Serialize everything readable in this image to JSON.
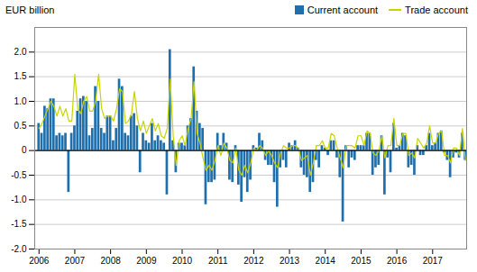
{
  "chart_data": {
    "type": "bar",
    "title": "EUR billion",
    "x": [
      2006,
      2006.083333,
      2006.166667,
      2006.25,
      2006.333333,
      2006.416667,
      2006.5,
      2006.583333,
      2006.666667,
      2006.75,
      2006.833333,
      2006.916667,
      2007,
      2007.083333,
      2007.166667,
      2007.25,
      2007.333333,
      2007.416667,
      2007.5,
      2007.583333,
      2007.666667,
      2007.75,
      2007.833333,
      2007.916667,
      2008,
      2008.083333,
      2008.166667,
      2008.25,
      2008.333333,
      2008.416667,
      2008.5,
      2008.583333,
      2008.666667,
      2008.75,
      2008.833333,
      2008.916667,
      2009,
      2009.083333,
      2009.166667,
      2009.25,
      2009.333333,
      2009.416667,
      2009.5,
      2009.583333,
      2009.666667,
      2009.75,
      2009.833333,
      2009.916667,
      2010,
      2010.083333,
      2010.166667,
      2010.25,
      2010.333333,
      2010.416667,
      2010.5,
      2010.583333,
      2010.666667,
      2010.75,
      2010.833333,
      2010.916667,
      2011,
      2011.083333,
      2011.166667,
      2011.25,
      2011.333333,
      2011.416667,
      2011.5,
      2011.583333,
      2011.666667,
      2011.75,
      2011.833333,
      2011.916667,
      2012,
      2012.083333,
      2012.166667,
      2012.25,
      2012.333333,
      2012.416667,
      2012.5,
      2012.583333,
      2012.666667,
      2012.75,
      2012.833333,
      2012.916667,
      2013,
      2013.083333,
      2013.166667,
      2013.25,
      2013.333333,
      2013.416667,
      2013.5,
      2013.583333,
      2013.666667,
      2013.75,
      2013.833333,
      2013.916667,
      2014,
      2014.083333,
      2014.166667,
      2014.25,
      2014.333333,
      2014.416667,
      2014.5,
      2014.583333,
      2014.666667,
      2014.75,
      2014.833333,
      2014.916667,
      2015,
      2015.083333,
      2015.166667,
      2015.25,
      2015.333333,
      2015.416667,
      2015.5,
      2015.583333,
      2015.666667,
      2015.75,
      2015.833333,
      2015.916667,
      2016,
      2016.083333,
      2016.166667,
      2016.25,
      2016.333333,
      2016.416667,
      2016.5,
      2016.583333,
      2016.666667,
      2016.75,
      2016.833333,
      2016.916667,
      2017,
      2017.083333,
      2017.166667,
      2017.25,
      2017.333333,
      2017.416667,
      2017.5,
      2017.583333,
      2017.666667,
      2017.75,
      2017.833333,
      2017.916667
    ],
    "series": [
      {
        "name": "Current account",
        "type": "bar",
        "color": "#1f6fad",
        "values": [
          0.55,
          0.35,
          0.9,
          0.85,
          1.05,
          1.05,
          0.3,
          0.35,
          0.3,
          0.35,
          -0.85,
          0.35,
          0.5,
          0.8,
          1.05,
          1.1,
          1.0,
          0.3,
          0.45,
          1.3,
          1.0,
          0.45,
          0.35,
          0.7,
          0.7,
          0.2,
          0.45,
          1.45,
          1.3,
          0.35,
          0.3,
          0.7,
          0.75,
          0.5,
          -0.45,
          0.35,
          0.2,
          0.15,
          0.55,
          0.2,
          0.3,
          0.2,
          0.15,
          -0.9,
          2.05,
          0.2,
          -0.45,
          0.15,
          0.15,
          0.1,
          0.5,
          0.65,
          1.7,
          0.8,
          0.55,
          0.45,
          -1.1,
          -0.65,
          -0.65,
          -0.6,
          0.35,
          0.1,
          0.35,
          0.15,
          -0.6,
          -0.65,
          0.1,
          -0.7,
          -1.05,
          -0.55,
          -0.85,
          -0.6,
          0.1,
          0.05,
          0.35,
          0.2,
          -0.2,
          -0.3,
          -0.3,
          -0.65,
          -1.15,
          -0.35,
          -0.2,
          -0.35,
          0.15,
          0.1,
          0.2,
          0.05,
          -0.35,
          -0.5,
          -0.55,
          -0.85,
          -0.65,
          -0.2,
          -0.35,
          0.1,
          0.05,
          -0.1,
          0.2,
          0.2,
          -0.15,
          -0.55,
          -1.45,
          0.1,
          -0.35,
          -0.15,
          -0.2,
          0.1,
          0.1,
          0.1,
          0.35,
          0.35,
          -0.5,
          -0.35,
          -0.3,
          0.3,
          -0.9,
          -0.15,
          -0.45,
          0.55,
          0.05,
          0.1,
          0.35,
          0.3,
          -0.35,
          -0.3,
          -0.5,
          0.1,
          -0.1,
          -0.1,
          0.1,
          0.35,
          0.1,
          0.15,
          0.35,
          0.4,
          -0.05,
          -0.2,
          -0.55,
          -0.15,
          -0.05,
          -0.15,
          0.35,
          -0.2
        ]
      },
      {
        "name": "Trade account",
        "type": "line",
        "color": "#c8d400",
        "values": [
          0.45,
          0.55,
          0.7,
          0.85,
          1.0,
          0.9,
          0.7,
          0.9,
          0.7,
          0.85,
          0.6,
          0.6,
          1.55,
          0.85,
          0.75,
          1.0,
          1.1,
          0.8,
          0.8,
          1.0,
          1.55,
          0.85,
          0.65,
          0.7,
          0.7,
          0.6,
          0.85,
          1.25,
          1.2,
          0.55,
          0.6,
          0.75,
          1.2,
          0.65,
          0.4,
          0.6,
          0.35,
          0.5,
          0.65,
          0.4,
          0.55,
          0.3,
          0.25,
          0.45,
          1.45,
          0.3,
          -0.3,
          0.2,
          0.3,
          0.1,
          0.45,
          0.65,
          1.4,
          0.35,
          0.15,
          -0.15,
          -0.4,
          -0.3,
          -0.4,
          -0.2,
          0.1,
          -0.1,
          0.15,
          0.05,
          -0.2,
          -0.25,
          0.05,
          -0.4,
          -0.5,
          -0.3,
          -0.45,
          -0.25,
          0.05,
          0.0,
          0.1,
          0.05,
          -0.1,
          0.0,
          -0.1,
          -0.25,
          -0.35,
          -0.05,
          0.1,
          0.05,
          0.05,
          0.1,
          0.1,
          0.05,
          -0.2,
          -0.15,
          -0.1,
          -0.5,
          -0.25,
          0.1,
          0.1,
          0.2,
          0.05,
          0.05,
          0.35,
          0.3,
          0.05,
          -0.15,
          -0.35,
          0.1,
          0.1,
          0.1,
          0.05,
          0.3,
          0.3,
          0.1,
          0.4,
          0.35,
          -0.05,
          -0.1,
          0.0,
          0.3,
          -0.15,
          0.1,
          0.1,
          0.65,
          0.1,
          0.1,
          0.35,
          0.35,
          -0.1,
          -0.05,
          -0.15,
          0.25,
          0.15,
          0.05,
          0.15,
          0.5,
          0.15,
          0.15,
          0.35,
          0.4,
          -0.1,
          -0.1,
          -0.25,
          0.05,
          0.05,
          -0.1,
          0.45,
          -0.2
        ]
      }
    ],
    "xlim": [
      2005.88,
      2017.95
    ],
    "xticks": [
      2006,
      2007,
      2008,
      2009,
      2010,
      2011,
      2012,
      2013,
      2014,
      2015,
      2016,
      2017
    ],
    "ylim": [
      -2.0,
      2.5
    ],
    "yticks": [
      {
        "value": -2.0,
        "label": "-2.0"
      },
      -1.5,
      {
        "value": -1.0,
        "label": "-1.0"
      },
      -0.5,
      0,
      0.5,
      {
        "value": 1.0,
        "label": "1.0"
      },
      1.5,
      {
        "value": 2.0,
        "label": "2.0"
      }
    ],
    "grid": true,
    "legend": "upper right"
  }
}
